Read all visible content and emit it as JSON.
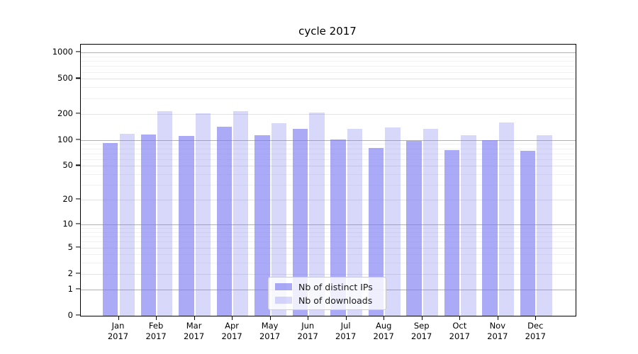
{
  "chart_data": {
    "type": "bar",
    "title": "cycle 2017",
    "categories": [
      "Jan 2017",
      "Feb 2017",
      "Mar 2017",
      "Apr 2017",
      "May 2017",
      "Jun 2017",
      "Jul 2017",
      "Aug 2017",
      "Sep 2017",
      "Oct 2017",
      "Nov 2017",
      "Dec 2017"
    ],
    "series": [
      {
        "name": "Nb of distinct IPs",
        "color": "#7878f0",
        "alpha": 0.63,
        "values": [
          92,
          115,
          112,
          141,
          113,
          135,
          102,
          81,
          97,
          77,
          99,
          75
        ]
      },
      {
        "name": "Nb of downloads",
        "color": "#7878f0",
        "alpha": 0.29,
        "values": [
          118,
          215,
          204,
          213,
          157,
          207,
          134,
          139,
          133,
          114,
          158,
          113
        ]
      }
    ],
    "yscale": "log1p",
    "yticks": [
      0,
      1,
      2,
      5,
      10,
      20,
      50,
      100,
      200,
      500,
      1000
    ],
    "major_gridlines": [
      1,
      10,
      100,
      1000
    ],
    "ylim": [
      0,
      1230
    ],
    "grid": true,
    "legend_position": "lower center",
    "colors": {
      "bar_dark_rendered": "#aaaaf8",
      "bar_light_rendered": "#d8d8fa",
      "major_grid": "#b1b1b1",
      "labeled_minor_grid": "#e3e3e3",
      "faint_minor_grid": "#f1f1f1",
      "axis": "#000000"
    }
  },
  "legend": {
    "items": [
      {
        "label": "Nb of distinct IPs"
      },
      {
        "label": "Nb of downloads"
      }
    ]
  }
}
